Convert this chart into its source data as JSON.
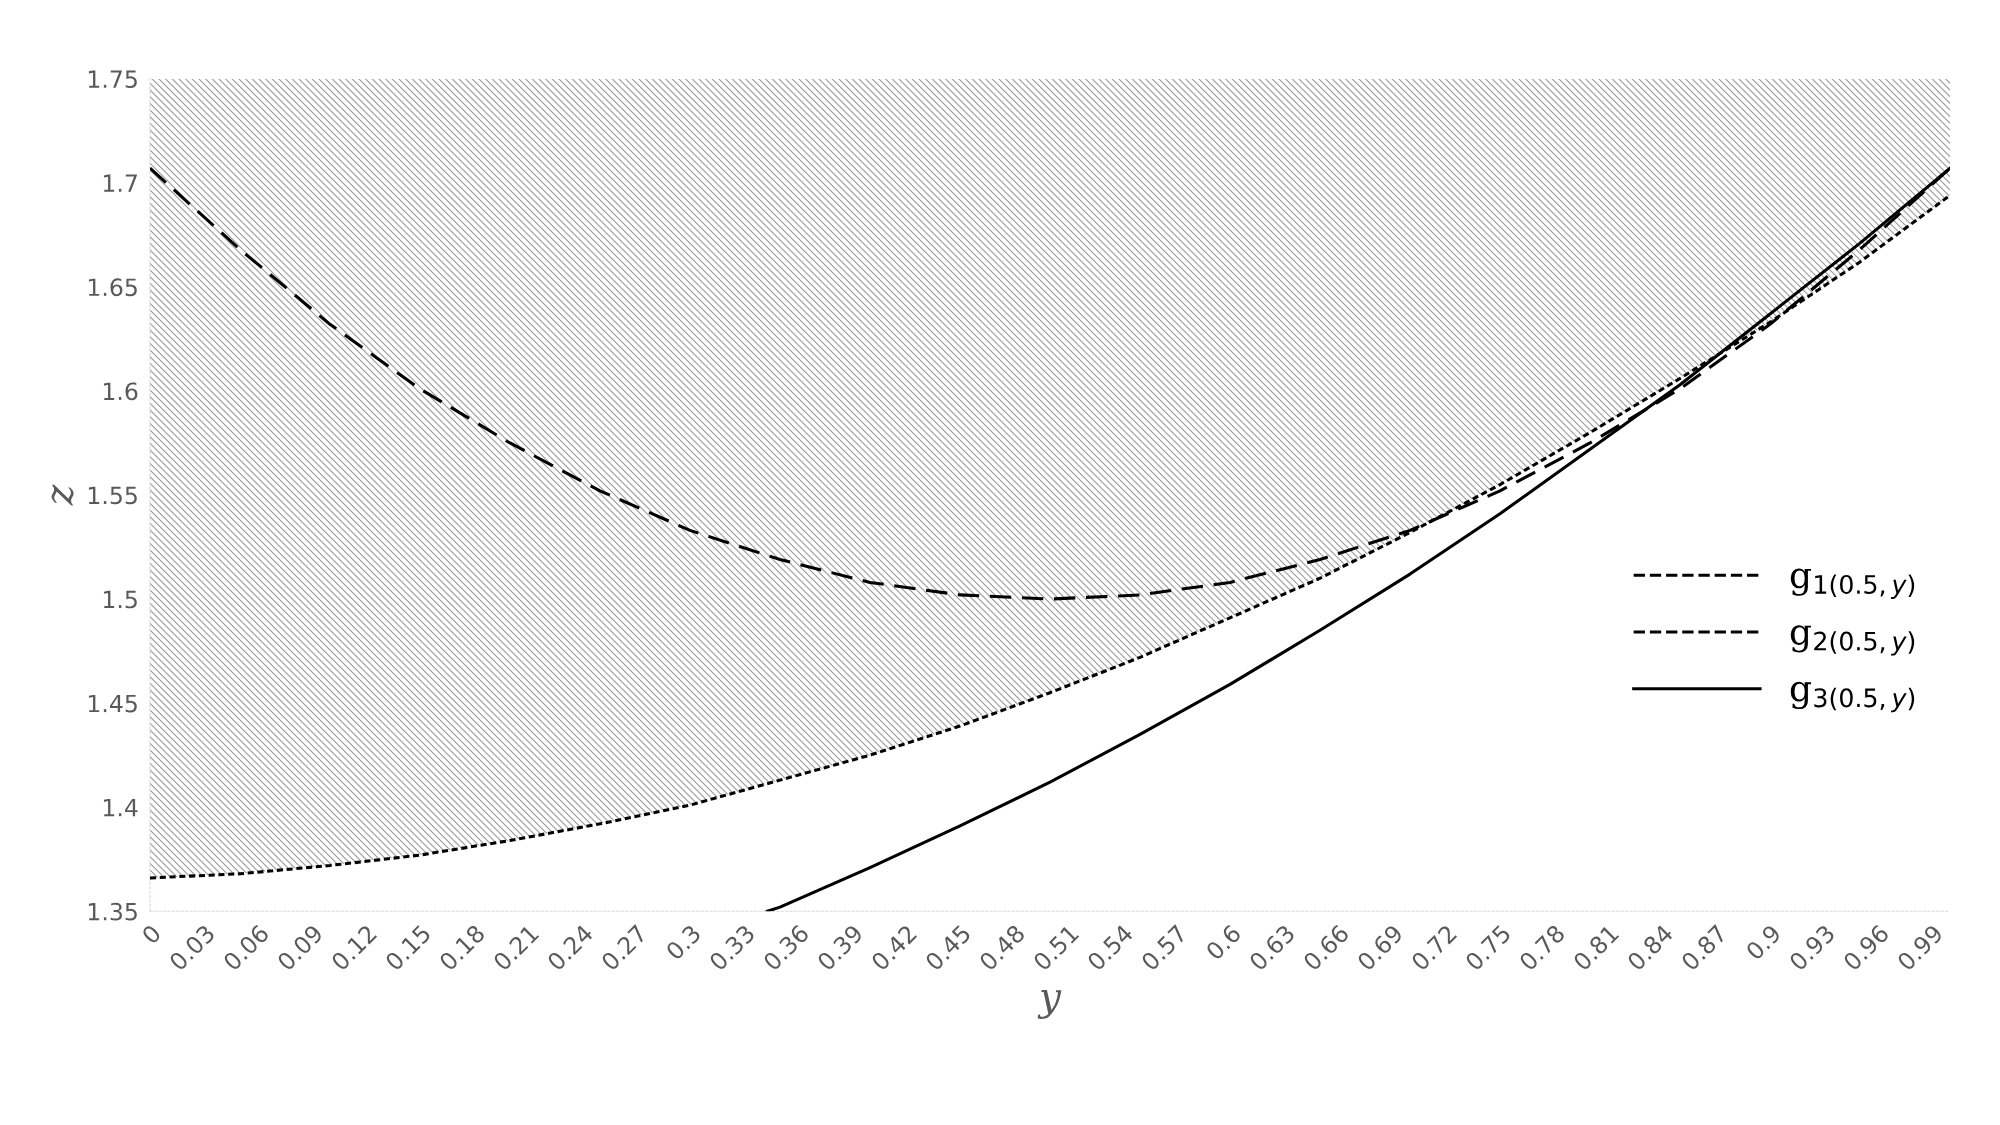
{
  "chart_data": {
    "type": "line",
    "xlabel": "y",
    "ylabel": "z",
    "xlim": [
      0,
      1
    ],
    "xticks": [
      0,
      0.03,
      0.06,
      0.09,
      0.12,
      0.15,
      0.18,
      0.21,
      0.24,
      0.27,
      0.3,
      0.33,
      0.36,
      0.39,
      0.42,
      0.45,
      0.48,
      0.51,
      0.54,
      0.57,
      0.6,
      0.63,
      0.66,
      0.69,
      0.72,
      0.75,
      0.78,
      0.81,
      0.84,
      0.87,
      0.9,
      0.93,
      0.96,
      0.99
    ],
    "ylim": [
      1.35,
      1.75
    ],
    "yticks": [
      1.35,
      1.4,
      1.45,
      1.5,
      1.55,
      1.6,
      1.65,
      1.7,
      1.75
    ],
    "grid": false,
    "legend": "right",
    "series": [
      {
        "name": "g$_{1(0.5,y)}$",
        "color": "#000000",
        "line_style": "dotted",
        "x": [
          0,
          0.05,
          0.1,
          0.15,
          0.2,
          0.25,
          0.3,
          0.35,
          0.4,
          0.45,
          0.5,
          0.55,
          0.6,
          0.65,
          0.7,
          0.75,
          0.8,
          0.85,
          0.9,
          0.95,
          1
        ],
        "values": [
          1.366,
          1.368,
          1.372,
          1.377,
          1.384,
          1.392,
          1.401,
          1.413,
          1.425,
          1.439,
          1.455,
          1.472,
          1.491,
          1.51,
          1.532,
          1.555,
          1.58,
          1.606,
          1.633,
          1.662,
          1.694
        ],
        "lower": [
          1.366,
          1.368,
          1.372,
          1.377,
          1.384,
          1.392,
          1.401,
          1.413,
          1.425,
          1.439,
          1.455,
          1.472,
          1.491,
          1.51,
          1.532,
          1.555,
          1.58,
          1.606,
          1.633,
          1.662,
          1.694
        ],
        "upper": [
          1.75,
          1.75,
          1.75,
          1.75,
          1.75,
          1.75,
          1.75,
          1.75,
          1.75,
          1.75,
          1.75,
          1.75,
          1.75,
          1.75,
          1.75,
          1.75,
          1.75,
          1.75,
          1.75,
          1.75,
          1.75
        ]
      },
      {
        "name": "g$_{2(0.5,y)}$",
        "color": "#000000",
        "line_style": "dashed",
        "x": [
          0,
          0.05,
          0.1,
          0.15,
          0.2,
          0.25,
          0.3,
          0.35,
          0.4,
          0.45,
          0.5,
          0.55,
          0.6,
          0.65,
          0.7,
          0.75,
          0.8,
          0.85,
          0.9,
          0.95,
          1
        ],
        "values": [
          1.707,
          1.668,
          1.632,
          1.601,
          1.575,
          1.552,
          1.533,
          1.519,
          1.508,
          1.502,
          1.5,
          1.502,
          1.508,
          1.519,
          1.533,
          1.552,
          1.575,
          1.601,
          1.632,
          1.668,
          1.707
        ]
      },
      {
        "name": "g$_{3(0.5,y)}$",
        "color": "#000000",
        "line_style": "solid",
        "x": [
          0.343,
          0.35,
          0.4,
          0.45,
          0.5,
          0.55,
          0.6,
          0.65,
          0.7,
          0.75,
          0.8,
          0.85,
          0.9,
          0.95,
          1
        ],
        "values": [
          1.35,
          1.352,
          1.371,
          1.391,
          1.412,
          1.435,
          1.459,
          1.485,
          1.512,
          1.541,
          1.572,
          1.603,
          1.637,
          1.671,
          1.707
        ]
      }
    ]
  }
}
